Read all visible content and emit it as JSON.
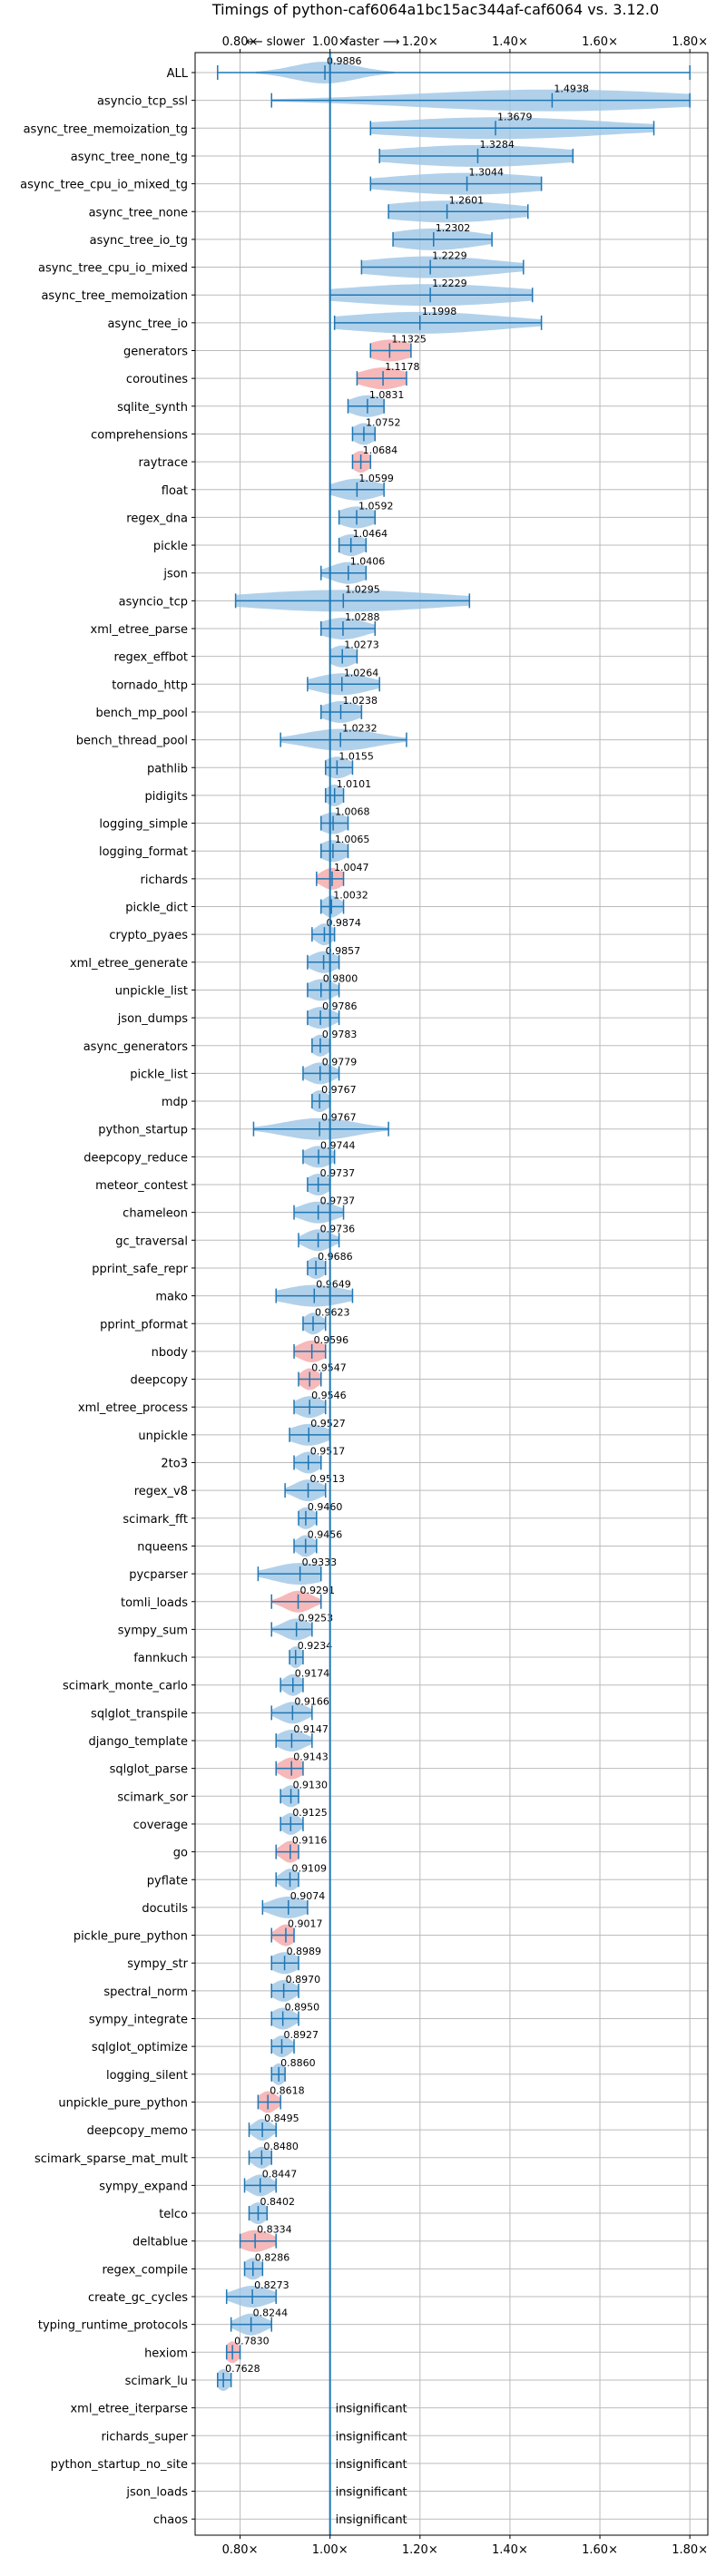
{
  "chart_data": {
    "type": "violin",
    "title": "Timings of python-caf6064a1bc15ac344af-caf6064 vs. 3.12.0",
    "direction_left": "⟵ slower",
    "direction_right": "faster ⟶",
    "xlim": [
      0.7,
      1.84
    ],
    "x_ticks": [
      0.8,
      1.0,
      1.2,
      1.4,
      1.6,
      1.8
    ],
    "x_tick_labels": [
      "0.80×",
      "1.00×",
      "1.20×",
      "1.40×",
      "1.60×",
      "1.80×"
    ],
    "reference_line": 1.0,
    "grid": true,
    "colors": {
      "normal": "#9ec5e6",
      "highlight": "#f4a6a8",
      "line": "#1f77b4",
      "grid": "#bbbbbb"
    },
    "insignificant_label": "insignificant",
    "benchmarks": [
      {
        "name": "ALL",
        "value": 0.9886,
        "value_label": "0.9886",
        "range": [
          0.75,
          1.8
        ],
        "spread": 0.07,
        "highlight": false
      },
      {
        "name": "asyncio_tcp_ssl",
        "value": 1.4938,
        "value_label": "1.4938",
        "range": [
          0.87,
          1.8
        ],
        "spread": 0.3,
        "highlight": false
      },
      {
        "name": "async_tree_memoization_tg",
        "value": 1.3679,
        "value_label": "1.3679",
        "range": [
          1.09,
          1.72
        ],
        "spread": 0.25,
        "highlight": false
      },
      {
        "name": "async_tree_none_tg",
        "value": 1.3284,
        "value_label": "1.3284",
        "range": [
          1.11,
          1.54
        ],
        "spread": 0.2,
        "highlight": false
      },
      {
        "name": "async_tree_cpu_io_mixed_tg",
        "value": 1.3044,
        "value_label": "1.3044",
        "range": [
          1.09,
          1.47
        ],
        "spread": 0.18,
        "highlight": false
      },
      {
        "name": "async_tree_none",
        "value": 1.2601,
        "value_label": "1.2601",
        "range": [
          1.13,
          1.44
        ],
        "spread": 0.15,
        "highlight": false
      },
      {
        "name": "async_tree_io_tg",
        "value": 1.2302,
        "value_label": "1.2302",
        "range": [
          1.14,
          1.36
        ],
        "spread": 0.1,
        "highlight": false
      },
      {
        "name": "async_tree_cpu_io_mixed",
        "value": 1.2229,
        "value_label": "1.2229",
        "range": [
          1.07,
          1.43
        ],
        "spread": 0.15,
        "highlight": false
      },
      {
        "name": "async_tree_memoization",
        "value": 1.2229,
        "value_label": "1.2229",
        "range": [
          1.0,
          1.45
        ],
        "spread": 0.2,
        "highlight": false
      },
      {
        "name": "async_tree_io",
        "value": 1.1998,
        "value_label": "1.1998",
        "range": [
          1.01,
          1.47
        ],
        "spread": 0.18,
        "highlight": false
      },
      {
        "name": "generators",
        "value": 1.1325,
        "value_label": "1.1325",
        "range": [
          1.09,
          1.18
        ],
        "spread": 0.05,
        "highlight": true
      },
      {
        "name": "coroutines",
        "value": 1.1178,
        "value_label": "1.1178",
        "range": [
          1.06,
          1.17
        ],
        "spread": 0.05,
        "highlight": true
      },
      {
        "name": "sqlite_synth",
        "value": 1.0831,
        "value_label": "1.0831",
        "range": [
          1.04,
          1.12
        ],
        "spread": 0.04,
        "highlight": false
      },
      {
        "name": "comprehensions",
        "value": 1.0752,
        "value_label": "1.0752",
        "range": [
          1.05,
          1.1
        ],
        "spread": 0.025,
        "highlight": false
      },
      {
        "name": "raytrace",
        "value": 1.0684,
        "value_label": "1.0684",
        "range": [
          1.05,
          1.09
        ],
        "spread": 0.02,
        "highlight": true
      },
      {
        "name": "float",
        "value": 1.0599,
        "value_label": "1.0599",
        "range": [
          1.0,
          1.12
        ],
        "spread": 0.05,
        "highlight": false
      },
      {
        "name": "regex_dna",
        "value": 1.0592,
        "value_label": "1.0592",
        "range": [
          1.02,
          1.1
        ],
        "spread": 0.04,
        "highlight": false
      },
      {
        "name": "pickle",
        "value": 1.0464,
        "value_label": "1.0464",
        "range": [
          1.02,
          1.08
        ],
        "spread": 0.03,
        "highlight": false
      },
      {
        "name": "json",
        "value": 1.0406,
        "value_label": "1.0406",
        "range": [
          0.98,
          1.08
        ],
        "spread": 0.04,
        "highlight": false
      },
      {
        "name": "asyncio_tcp",
        "value": 1.0295,
        "value_label": "1.0295",
        "range": [
          0.79,
          1.31
        ],
        "spread": 0.22,
        "highlight": false
      },
      {
        "name": "xml_etree_parse",
        "value": 1.0288,
        "value_label": "1.0288",
        "range": [
          0.98,
          1.1
        ],
        "spread": 0.05,
        "highlight": false
      },
      {
        "name": "regex_effbot",
        "value": 1.0273,
        "value_label": "1.0273",
        "range": [
          1.0,
          1.06
        ],
        "spread": 0.03,
        "highlight": false
      },
      {
        "name": "tornado_http",
        "value": 1.0264,
        "value_label": "1.0264",
        "range": [
          0.95,
          1.11
        ],
        "spread": 0.06,
        "highlight": false
      },
      {
        "name": "bench_mp_pool",
        "value": 1.0238,
        "value_label": "1.0238",
        "range": [
          0.98,
          1.07
        ],
        "spread": 0.04,
        "highlight": false
      },
      {
        "name": "bench_thread_pool",
        "value": 1.0232,
        "value_label": "1.0232",
        "range": [
          0.89,
          1.17
        ],
        "spread": 0.08,
        "highlight": false
      },
      {
        "name": "pathlib",
        "value": 1.0155,
        "value_label": "1.0155",
        "range": [
          0.99,
          1.05
        ],
        "spread": 0.03,
        "highlight": false
      },
      {
        "name": "pidigits",
        "value": 1.0101,
        "value_label": "1.0101",
        "range": [
          0.99,
          1.03
        ],
        "spread": 0.02,
        "highlight": false
      },
      {
        "name": "logging_simple",
        "value": 1.0068,
        "value_label": "1.0068",
        "range": [
          0.98,
          1.04
        ],
        "spread": 0.03,
        "highlight": false
      },
      {
        "name": "logging_format",
        "value": 1.0065,
        "value_label": "1.0065",
        "range": [
          0.98,
          1.04
        ],
        "spread": 0.03,
        "highlight": false
      },
      {
        "name": "richards",
        "value": 1.0047,
        "value_label": "1.0047",
        "range": [
          0.97,
          1.03
        ],
        "spread": 0.025,
        "highlight": true
      },
      {
        "name": "pickle_dict",
        "value": 1.0032,
        "value_label": "1.0032",
        "range": [
          0.98,
          1.03
        ],
        "spread": 0.02,
        "highlight": false
      },
      {
        "name": "crypto_pyaes",
        "value": 0.9874,
        "value_label": "0.9874",
        "range": [
          0.96,
          1.01
        ],
        "spread": 0.02,
        "highlight": false
      },
      {
        "name": "xml_etree_generate",
        "value": 0.9857,
        "value_label": "0.9857",
        "range": [
          0.95,
          1.02
        ],
        "spread": 0.03,
        "highlight": false
      },
      {
        "name": "unpickle_list",
        "value": 0.98,
        "value_label": "0.9800",
        "range": [
          0.95,
          1.02
        ],
        "spread": 0.03,
        "highlight": false
      },
      {
        "name": "json_dumps",
        "value": 0.9786,
        "value_label": "0.9786",
        "range": [
          0.95,
          1.02
        ],
        "spread": 0.03,
        "highlight": false
      },
      {
        "name": "async_generators",
        "value": 0.9783,
        "value_label": "0.9783",
        "range": [
          0.96,
          1.0
        ],
        "spread": 0.02,
        "highlight": false
      },
      {
        "name": "pickle_list",
        "value": 0.9779,
        "value_label": "0.9779",
        "range": [
          0.94,
          1.02
        ],
        "spread": 0.03,
        "highlight": false
      },
      {
        "name": "mdp",
        "value": 0.9767,
        "value_label": "0.9767",
        "range": [
          0.96,
          1.0
        ],
        "spread": 0.02,
        "highlight": false
      },
      {
        "name": "python_startup",
        "value": 0.9767,
        "value_label": "0.9767",
        "range": [
          0.83,
          1.13
        ],
        "spread": 0.08,
        "highlight": false
      },
      {
        "name": "deepcopy_reduce",
        "value": 0.9744,
        "value_label": "0.9744",
        "range": [
          0.94,
          1.01
        ],
        "spread": 0.03,
        "highlight": false
      },
      {
        "name": "meteor_contest",
        "value": 0.9737,
        "value_label": "0.9737",
        "range": [
          0.95,
          1.0
        ],
        "spread": 0.025,
        "highlight": false
      },
      {
        "name": "chameleon",
        "value": 0.9737,
        "value_label": "0.9737",
        "range": [
          0.92,
          1.03
        ],
        "spread": 0.04,
        "highlight": false
      },
      {
        "name": "gc_traversal",
        "value": 0.9736,
        "value_label": "0.9736",
        "range": [
          0.93,
          1.02
        ],
        "spread": 0.03,
        "highlight": false
      },
      {
        "name": "pprint_safe_repr",
        "value": 0.9686,
        "value_label": "0.9686",
        "range": [
          0.95,
          0.99
        ],
        "spread": 0.02,
        "highlight": false
      },
      {
        "name": "mako",
        "value": 0.9649,
        "value_label": "0.9649",
        "range": [
          0.88,
          1.05
        ],
        "spread": 0.07,
        "highlight": false
      },
      {
        "name": "pprint_pformat",
        "value": 0.9623,
        "value_label": "0.9623",
        "range": [
          0.94,
          0.99
        ],
        "spread": 0.02,
        "highlight": false
      },
      {
        "name": "nbody",
        "value": 0.9596,
        "value_label": "0.9596",
        "range": [
          0.92,
          0.99
        ],
        "spread": 0.03,
        "highlight": true
      },
      {
        "name": "deepcopy",
        "value": 0.9547,
        "value_label": "0.9547",
        "range": [
          0.93,
          0.98
        ],
        "spread": 0.02,
        "highlight": true
      },
      {
        "name": "xml_etree_process",
        "value": 0.9546,
        "value_label": "0.9546",
        "range": [
          0.92,
          0.99
        ],
        "spread": 0.03,
        "highlight": false
      },
      {
        "name": "unpickle",
        "value": 0.9527,
        "value_label": "0.9527",
        "range": [
          0.91,
          1.0
        ],
        "spread": 0.04,
        "highlight": false
      },
      {
        "name": "2to3",
        "value": 0.9517,
        "value_label": "0.9517",
        "range": [
          0.92,
          0.98
        ],
        "spread": 0.025,
        "highlight": false
      },
      {
        "name": "regex_v8",
        "value": 0.9513,
        "value_label": "0.9513",
        "range": [
          0.9,
          0.99
        ],
        "spread": 0.03,
        "highlight": false
      },
      {
        "name": "scimark_fft",
        "value": 0.946,
        "value_label": "0.9460",
        "range": [
          0.93,
          0.97
        ],
        "spread": 0.02,
        "highlight": false
      },
      {
        "name": "nqueens",
        "value": 0.9456,
        "value_label": "0.9456",
        "range": [
          0.92,
          0.97
        ],
        "spread": 0.02,
        "highlight": false
      },
      {
        "name": "pycparser",
        "value": 0.9333,
        "value_label": "0.9333",
        "range": [
          0.84,
          0.98
        ],
        "spread": 0.06,
        "highlight": false
      },
      {
        "name": "tomli_loads",
        "value": 0.9291,
        "value_label": "0.9291",
        "range": [
          0.87,
          0.98
        ],
        "spread": 0.03,
        "highlight": true
      },
      {
        "name": "sympy_sum",
        "value": 0.9253,
        "value_label": "0.9253",
        "range": [
          0.87,
          0.96
        ],
        "spread": 0.03,
        "highlight": false
      },
      {
        "name": "fannkuch",
        "value": 0.9234,
        "value_label": "0.9234",
        "range": [
          0.91,
          0.94
        ],
        "spread": 0.015,
        "highlight": false
      },
      {
        "name": "scimark_monte_carlo",
        "value": 0.9174,
        "value_label": "0.9174",
        "range": [
          0.89,
          0.94
        ],
        "spread": 0.02,
        "highlight": false
      },
      {
        "name": "sqlglot_transpile",
        "value": 0.9166,
        "value_label": "0.9166",
        "range": [
          0.87,
          0.96
        ],
        "spread": 0.03,
        "highlight": false
      },
      {
        "name": "django_template",
        "value": 0.9147,
        "value_label": "0.9147",
        "range": [
          0.88,
          0.96
        ],
        "spread": 0.03,
        "highlight": false
      },
      {
        "name": "sqlglot_parse",
        "value": 0.9143,
        "value_label": "0.9143",
        "range": [
          0.88,
          0.94
        ],
        "spread": 0.025,
        "highlight": true
      },
      {
        "name": "scimark_sor",
        "value": 0.913,
        "value_label": "0.9130",
        "range": [
          0.89,
          0.93
        ],
        "spread": 0.02,
        "highlight": false
      },
      {
        "name": "coverage",
        "value": 0.9125,
        "value_label": "0.9125",
        "range": [
          0.89,
          0.94
        ],
        "spread": 0.02,
        "highlight": false
      },
      {
        "name": "go",
        "value": 0.9116,
        "value_label": "0.9116",
        "range": [
          0.88,
          0.93
        ],
        "spread": 0.02,
        "highlight": true
      },
      {
        "name": "pyflate",
        "value": 0.9109,
        "value_label": "0.9109",
        "range": [
          0.88,
          0.93
        ],
        "spread": 0.02,
        "highlight": false
      },
      {
        "name": "docutils",
        "value": 0.9074,
        "value_label": "0.9074",
        "range": [
          0.85,
          0.95
        ],
        "spread": 0.04,
        "highlight": false
      },
      {
        "name": "pickle_pure_python",
        "value": 0.9017,
        "value_label": "0.9017",
        "range": [
          0.87,
          0.92
        ],
        "spread": 0.02,
        "highlight": true
      },
      {
        "name": "sympy_str",
        "value": 0.8989,
        "value_label": "0.8989",
        "range": [
          0.87,
          0.93
        ],
        "spread": 0.03,
        "highlight": false
      },
      {
        "name": "spectral_norm",
        "value": 0.897,
        "value_label": "0.8970",
        "range": [
          0.87,
          0.93
        ],
        "spread": 0.025,
        "highlight": false
      },
      {
        "name": "sympy_integrate",
        "value": 0.895,
        "value_label": "0.8950",
        "range": [
          0.87,
          0.93
        ],
        "spread": 0.025,
        "highlight": false
      },
      {
        "name": "sqlglot_optimize",
        "value": 0.8927,
        "value_label": "0.8927",
        "range": [
          0.87,
          0.92
        ],
        "spread": 0.02,
        "highlight": false
      },
      {
        "name": "logging_silent",
        "value": 0.886,
        "value_label": "0.8860",
        "range": [
          0.87,
          0.9
        ],
        "spread": 0.015,
        "highlight": false
      },
      {
        "name": "unpickle_pure_python",
        "value": 0.8618,
        "value_label": "0.8618",
        "range": [
          0.84,
          0.89
        ],
        "spread": 0.02,
        "highlight": true
      },
      {
        "name": "deepcopy_memo",
        "value": 0.8495,
        "value_label": "0.8495",
        "range": [
          0.82,
          0.88
        ],
        "spread": 0.02,
        "highlight": false
      },
      {
        "name": "scimark_sparse_mat_mult",
        "value": 0.848,
        "value_label": "0.8480",
        "range": [
          0.82,
          0.87
        ],
        "spread": 0.02,
        "highlight": false
      },
      {
        "name": "sympy_expand",
        "value": 0.8447,
        "value_label": "0.8447",
        "range": [
          0.81,
          0.88
        ],
        "spread": 0.025,
        "highlight": false
      },
      {
        "name": "telco",
        "value": 0.8402,
        "value_label": "0.8402",
        "range": [
          0.82,
          0.86
        ],
        "spread": 0.02,
        "highlight": false
      },
      {
        "name": "deltablue",
        "value": 0.8334,
        "value_label": "0.8334",
        "range": [
          0.8,
          0.88
        ],
        "spread": 0.035,
        "highlight": true
      },
      {
        "name": "regex_compile",
        "value": 0.8286,
        "value_label": "0.8286",
        "range": [
          0.81,
          0.85
        ],
        "spread": 0.02,
        "highlight": false
      },
      {
        "name": "create_gc_cycles",
        "value": 0.8273,
        "value_label": "0.8273",
        "range": [
          0.77,
          0.88
        ],
        "spread": 0.04,
        "highlight": false
      },
      {
        "name": "typing_runtime_protocols",
        "value": 0.8244,
        "value_label": "0.8244",
        "range": [
          0.78,
          0.87
        ],
        "spread": 0.03,
        "highlight": false
      },
      {
        "name": "hexiom",
        "value": 0.783,
        "value_label": "0.7830",
        "range": [
          0.77,
          0.8
        ],
        "spread": 0.015,
        "highlight": true
      },
      {
        "name": "scimark_lu",
        "value": 0.7628,
        "value_label": "0.7628",
        "range": [
          0.75,
          0.78
        ],
        "spread": 0.015,
        "highlight": false
      },
      {
        "name": "xml_etree_iterparse",
        "value": null,
        "value_label": "insignificant",
        "range": null,
        "spread": 0,
        "highlight": false
      },
      {
        "name": "richards_super",
        "value": null,
        "value_label": "insignificant",
        "range": null,
        "spread": 0,
        "highlight": false
      },
      {
        "name": "python_startup_no_site",
        "value": null,
        "value_label": "insignificant",
        "range": null,
        "spread": 0,
        "highlight": false
      },
      {
        "name": "json_loads",
        "value": null,
        "value_label": "insignificant",
        "range": null,
        "spread": 0,
        "highlight": false
      },
      {
        "name": "chaos",
        "value": null,
        "value_label": "insignificant",
        "range": null,
        "spread": 0,
        "highlight": false
      }
    ]
  }
}
